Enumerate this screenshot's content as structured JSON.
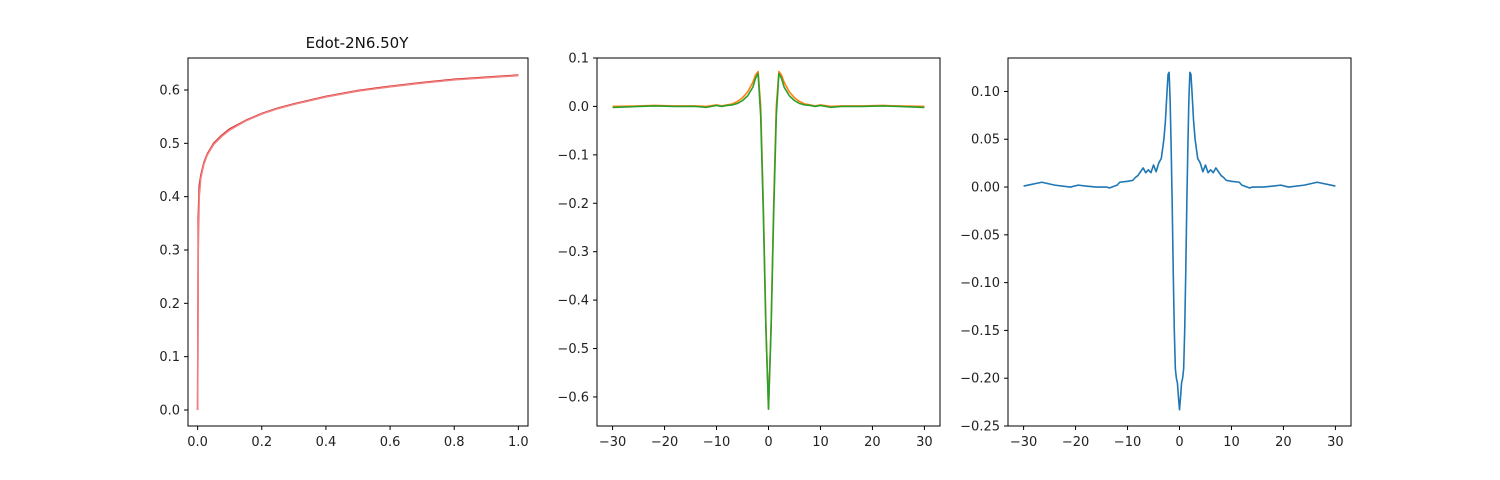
{
  "chart_data": [
    {
      "type": "line",
      "title": "Edot-2N6.50Y",
      "xlim": [
        -0.03,
        1.03
      ],
      "ylim": [
        -0.03,
        0.66
      ],
      "xticks": [
        0.0,
        0.2,
        0.4,
        0.6,
        0.8,
        1.0
      ],
      "xtick_labels": [
        "0.0",
        "0.2",
        "0.4",
        "0.6",
        "0.8",
        "1.0"
      ],
      "yticks": [
        0.0,
        0.1,
        0.2,
        0.3,
        0.4,
        0.5,
        0.6
      ],
      "ytick_labels": [
        "0.0",
        "0.1",
        "0.2",
        "0.3",
        "0.4",
        "0.5",
        "0.6"
      ],
      "grid": false,
      "series": [
        {
          "color": "#d62728",
          "x": [
            0.0,
            0.002,
            0.005,
            0.01,
            0.02,
            0.03,
            0.05,
            0.075,
            0.1,
            0.15,
            0.2,
            0.25,
            0.3,
            0.4,
            0.5,
            0.6,
            0.7,
            0.8,
            0.9,
            1.0
          ],
          "y": [
            0.0,
            0.36,
            0.42,
            0.44,
            0.465,
            0.48,
            0.5,
            0.515,
            0.527,
            0.543,
            0.556,
            0.566,
            0.574,
            0.588,
            0.599,
            0.607,
            0.614,
            0.62,
            0.624,
            0.628
          ]
        },
        {
          "color": "#f08080",
          "x": [
            0.0,
            0.002,
            0.005,
            0.01,
            0.02,
            0.03,
            0.05,
            0.075,
            0.1,
            0.15,
            0.2,
            0.25,
            0.3,
            0.4,
            0.5,
            0.6,
            0.7,
            0.8,
            0.9,
            1.0
          ],
          "y": [
            0.0,
            0.3,
            0.4,
            0.435,
            0.462,
            0.478,
            0.498,
            0.513,
            0.525,
            0.542,
            0.555,
            0.565,
            0.573,
            0.587,
            0.598,
            0.606,
            0.613,
            0.619,
            0.623,
            0.627
          ]
        }
      ]
    },
    {
      "type": "line",
      "xlim": [
        -33,
        33
      ],
      "ylim": [
        -0.66,
        0.1
      ],
      "xticks": [
        -30,
        -20,
        -10,
        0,
        10,
        20,
        30
      ],
      "xtick_labels": [
        "−30",
        "−20",
        "−10",
        "0",
        "10",
        "20",
        "30"
      ],
      "yticks": [
        0.1,
        0.0,
        -0.1,
        -0.2,
        -0.3,
        -0.4,
        -0.5,
        -0.6
      ],
      "ytick_labels": [
        "0.1",
        "0.0",
        "−0.1",
        "−0.2",
        "−0.3",
        "−0.4",
        "−0.5",
        "−0.6"
      ],
      "grid": false,
      "series": [
        {
          "color": "#ff7f0e",
          "x": [
            -30,
            -25,
            -22,
            -18,
            -14,
            -12,
            -10,
            -9,
            -8,
            -7,
            -6,
            -5,
            -4,
            -3,
            -2.5,
            -2,
            -1.5,
            -1,
            -0.5,
            0,
            0.5,
            1,
            1.5,
            2,
            2.5,
            3,
            4,
            5,
            6,
            7,
            8,
            9,
            10,
            12,
            14,
            18,
            22,
            25,
            30
          ],
          "y": [
            0.0,
            0.001,
            0.002,
            0.001,
            0.001,
            0.0,
            0.003,
            0.001,
            0.003,
            0.005,
            0.01,
            0.018,
            0.03,
            0.05,
            0.065,
            0.072,
            0.0,
            -0.2,
            -0.45,
            -0.625,
            -0.45,
            -0.2,
            0.0,
            0.072,
            0.065,
            0.05,
            0.03,
            0.018,
            0.01,
            0.005,
            0.003,
            0.001,
            0.003,
            0.0,
            0.001,
            0.001,
            0.002,
            0.001,
            0.0
          ]
        },
        {
          "color": "#2ca02c",
          "x": [
            -30,
            -25,
            -22,
            -18,
            -14,
            -12,
            -10,
            -9,
            -8,
            -7,
            -6,
            -5,
            -4,
            -3,
            -2.5,
            -2,
            -1.5,
            -1,
            -0.5,
            0,
            0.5,
            1,
            1.5,
            2,
            2.5,
            3,
            4,
            5,
            6,
            7,
            8,
            9,
            10,
            12,
            14,
            18,
            22,
            25,
            30
          ],
          "y": [
            -0.002,
            0.0,
            0.001,
            0.0,
            0.0,
            -0.002,
            0.002,
            0.0,
            0.002,
            0.003,
            0.006,
            0.012,
            0.022,
            0.04,
            0.058,
            0.068,
            -0.02,
            -0.22,
            -0.46,
            -0.625,
            -0.46,
            -0.22,
            -0.02,
            0.068,
            0.058,
            0.04,
            0.022,
            0.012,
            0.006,
            0.003,
            0.002,
            0.0,
            0.002,
            -0.002,
            0.0,
            0.0,
            0.001,
            0.0,
            -0.002
          ]
        }
      ]
    },
    {
      "type": "line",
      "xlim": [
        -33,
        33
      ],
      "ylim": [
        -0.25,
        0.135
      ],
      "xticks": [
        -30,
        -20,
        -10,
        0,
        10,
        20,
        30
      ],
      "xtick_labels": [
        "−30",
        "−20",
        "−10",
        "0",
        "10",
        "20",
        "30"
      ],
      "yticks": [
        0.1,
        0.05,
        0.0,
        -0.05,
        -0.1,
        -0.15,
        -0.2,
        -0.25
      ],
      "ytick_labels": [
        "0.10",
        "0.05",
        "0.00",
        "−0.05",
        "−0.10",
        "−0.15",
        "−0.20",
        "−0.25"
      ],
      "grid": false,
      "series": [
        {
          "color": "#1f77b4",
          "x": [
            -30,
            -26.5,
            -24,
            -21,
            -19.5,
            -18,
            -16,
            -14,
            -13.5,
            -12,
            -11.5,
            -10,
            -9,
            -8.5,
            -8,
            -7.5,
            -7,
            -6.5,
            -6,
            -5.5,
            -5,
            -4.5,
            -4,
            -3.5,
            -3,
            -2.7,
            -2.4,
            -2.2,
            -2.0,
            -1.8,
            -1.6,
            -1.4,
            -1.2,
            -1.0,
            -0.8,
            -0.6,
            -0.4,
            -0.2,
            0,
            0.2,
            0.4,
            0.6,
            0.8,
            1.0,
            1.2,
            1.4,
            1.6,
            1.8,
            2.0,
            2.2,
            2.4,
            2.7,
            3,
            3.5,
            4,
            4.5,
            5,
            5.5,
            6,
            6.5,
            7,
            7.5,
            8,
            8.5,
            9,
            10,
            11.5,
            12,
            13.5,
            14,
            16,
            18,
            19.5,
            21,
            24,
            26.5,
            30
          ],
          "y": [
            0.001,
            0.005,
            0.002,
            0.0,
            0.002,
            0.001,
            0.0,
            0.0,
            -0.001,
            0.002,
            0.005,
            0.006,
            0.007,
            0.01,
            0.012,
            0.016,
            0.02,
            0.015,
            0.018,
            0.015,
            0.023,
            0.016,
            0.025,
            0.03,
            0.05,
            0.07,
            0.1,
            0.118,
            0.12,
            0.09,
            0.04,
            -0.02,
            -0.09,
            -0.15,
            -0.19,
            -0.2,
            -0.205,
            -0.22,
            -0.233,
            -0.22,
            -0.205,
            -0.2,
            -0.19,
            -0.15,
            -0.09,
            -0.02,
            0.04,
            0.09,
            0.12,
            0.118,
            0.1,
            0.07,
            0.05,
            0.03,
            0.025,
            0.016,
            0.023,
            0.015,
            0.018,
            0.015,
            0.02,
            0.016,
            0.012,
            0.01,
            0.007,
            0.006,
            0.005,
            0.002,
            -0.001,
            0.0,
            0.0,
            0.001,
            0.002,
            0.0,
            0.002,
            0.005,
            0.001
          ]
        }
      ]
    }
  ]
}
